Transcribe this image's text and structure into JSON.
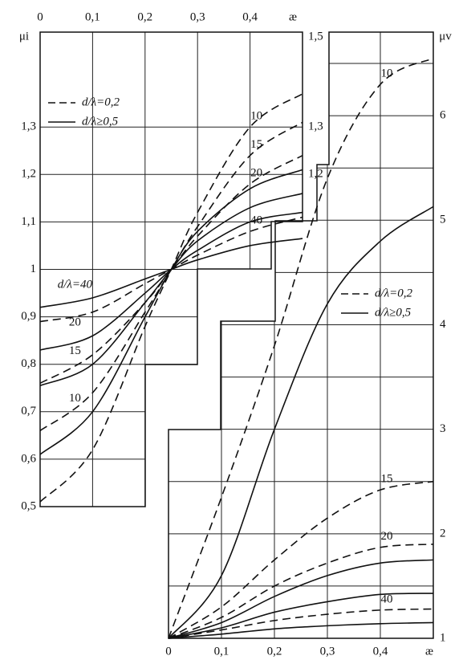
{
  "chart_data": [
    {
      "type": "line",
      "x_label": "æ",
      "y_label": "μi",
      "xlim": [
        0,
        0.5
      ],
      "ylim": [
        0.5,
        1.5
      ],
      "xticks": [
        0,
        {
          "value": 0.1,
          "label": "0,1"
        },
        {
          "value": 0.2,
          "label": "0,2"
        },
        {
          "value": 0.3,
          "label": "0,3"
        },
        {
          "value": 0.4,
          "label": "0,4"
        }
      ],
      "yticks": [
        {
          "value": 0.5,
          "label": "0,5"
        },
        {
          "value": 0.6,
          "label": "0,6"
        },
        {
          "value": 0.7,
          "label": "0,7"
        },
        {
          "value": 0.8,
          "label": "0,8"
        },
        {
          "value": 0.9,
          "label": "0,9"
        },
        1,
        {
          "value": 1.1,
          "label": "1,1"
        },
        {
          "value": 1.2,
          "label": "1,2"
        },
        {
          "value": 1.3,
          "label": "1,3"
        }
      ],
      "y2ticks": [
        {
          "value": 1.2,
          "label": "1,2"
        },
        {
          "value": 1.3,
          "label": "1,3"
        },
        {
          "value": 1.5,
          "label": "1,5"
        }
      ],
      "legend": [
        {
          "label": "d/λ=0,2",
          "dashed": true
        },
        {
          "label": "d/λ≥0,5",
          "dashed": false
        }
      ],
      "x": [
        0,
        0.1,
        0.2,
        0.25,
        0.3,
        0.4,
        0.5
      ],
      "groups": [
        {
          "name": "10",
          "dashed": [
            0.51,
            0.62,
            0.88,
            1.0,
            1.12,
            1.3,
            1.37
          ],
          "solid": [
            0.61,
            0.7,
            0.9,
            1.0,
            1.08,
            1.17,
            1.21
          ]
        },
        {
          "name": "15",
          "dashed": [
            0.66,
            0.74,
            0.91,
            1.0,
            1.09,
            1.24,
            1.31
          ],
          "solid": [
            0.755,
            0.8,
            0.93,
            1.0,
            1.06,
            1.13,
            1.16
          ]
        },
        {
          "name": "20",
          "dashed": [
            0.76,
            0.82,
            0.93,
            1.0,
            1.07,
            1.18,
            1.24
          ],
          "solid": [
            0.83,
            0.86,
            0.95,
            1.0,
            1.04,
            1.1,
            1.12
          ]
        },
        {
          "name": "40",
          "start_label": "d/λ=40",
          "dashed": [
            0.89,
            0.91,
            0.97,
            1.0,
            1.03,
            1.08,
            1.11
          ],
          "solid": [
            0.92,
            0.94,
            0.98,
            1.0,
            1.02,
            1.05,
            1.065
          ]
        }
      ]
    },
    {
      "type": "line",
      "x_label": "æ",
      "y_label": "μv",
      "xlim": [
        0,
        0.5
      ],
      "ylim": [
        1,
        6.8
      ],
      "xticks": [
        0,
        {
          "value": 0.1,
          "label": "0,1"
        },
        {
          "value": 0.2,
          "label": "0,2"
        },
        {
          "value": 0.3,
          "label": "0,3"
        },
        {
          "value": 0.4,
          "label": "0,4"
        }
      ],
      "yticks": [
        1,
        2,
        3,
        4,
        5,
        6
      ],
      "y_minor_ticks": [
        1.5,
        2.5,
        3.5,
        4.5,
        5.5,
        6.5
      ],
      "legend": [
        {
          "label": "d/λ=0,2",
          "dashed": true
        },
        {
          "label": "d/λ≥0,5",
          "dashed": false
        }
      ],
      "x": [
        0,
        0.1,
        0.2,
        0.3,
        0.4,
        0.5
      ],
      "groups": [
        {
          "name": "10",
          "dashed": [
            1.0,
            2.35,
            3.8,
            5.4,
            6.3,
            6.55
          ],
          "solid": [
            1.0,
            1.6,
            3.0,
            4.2,
            4.8,
            5.13
          ]
        },
        {
          "name": "15",
          "dashed": [
            1.0,
            1.3,
            1.75,
            2.15,
            2.42,
            2.5
          ],
          "solid": [
            1.0,
            1.15,
            1.4,
            1.6,
            1.72,
            1.75
          ]
        },
        {
          "name": "20",
          "dashed": [
            1.0,
            1.2,
            1.5,
            1.72,
            1.87,
            1.9
          ],
          "solid": [
            1.0,
            1.1,
            1.25,
            1.35,
            1.42,
            1.43
          ]
        },
        {
          "name": "40",
          "dashed": [
            1.0,
            1.08,
            1.17,
            1.23,
            1.27,
            1.28
          ],
          "solid": [
            1.0,
            1.04,
            1.09,
            1.12,
            1.14,
            1.15
          ]
        }
      ]
    }
  ]
}
